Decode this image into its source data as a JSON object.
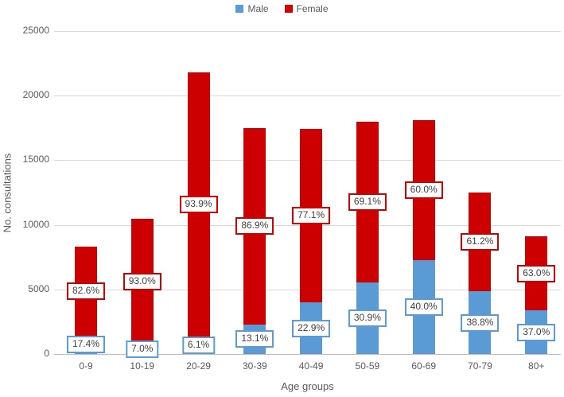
{
  "chart_data": {
    "type": "bar",
    "stacked": true,
    "title": "",
    "xlabel": "Age groups",
    "ylabel": "No. consultations",
    "ylim": [
      0,
      25000
    ],
    "yticks": [
      0,
      5000,
      10000,
      15000,
      20000,
      25000
    ],
    "grid": true,
    "legend_position": "top",
    "categories": [
      "0-9",
      "10-19",
      "20-29",
      "30-39",
      "40-49",
      "50-59",
      "60-69",
      "70-79",
      "80+"
    ],
    "series": [
      {
        "name": "Male",
        "color": "#5B9BD5",
        "values": [
          1444,
          735,
          1330,
          2293,
          3985,
          5562,
          7240,
          4850,
          3367
        ],
        "percent_labels": [
          "17.4%",
          "7.0%",
          "6.1%",
          "13.1%",
          "22.9%",
          "30.9%",
          "40.0%",
          "38.8%",
          "37.0%"
        ]
      },
      {
        "name": "Female",
        "color": "#CC0000",
        "values": [
          6856,
          9765,
          20470,
          15207,
          13415,
          12438,
          10860,
          7650,
          5733
        ],
        "percent_labels": [
          "82.6%",
          "93.0%",
          "93.9%",
          "86.9%",
          "77.1%",
          "69.1%",
          "60.0%",
          "61.2%",
          "63.0%"
        ]
      }
    ],
    "totals": [
      8300,
      10500,
      21800,
      17500,
      17400,
      18000,
      18100,
      12500,
      9100
    ]
  },
  "colors": {
    "male": "#5B9BD5",
    "female": "#CC0000",
    "gridline": "#D9D9D9",
    "axis_line": "#BFBFBF",
    "tick_text": "#595959",
    "label_text": "#404040",
    "background": "#FFFFFF"
  }
}
